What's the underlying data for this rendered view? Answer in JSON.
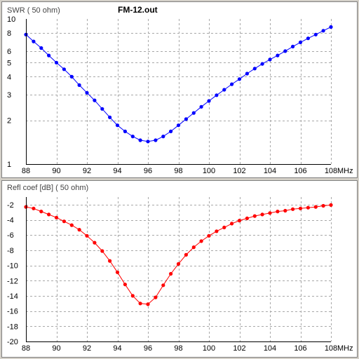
{
  "file_title": "FM-12.out",
  "chart_data": [
    {
      "type": "line",
      "title": "SWR ( 50 ohm)",
      "xlabel": "",
      "x_unit": "MHz",
      "ylabel": "",
      "xlim": [
        88,
        108
      ],
      "ylim": [
        1,
        10
      ],
      "yscale": "log",
      "grid": true,
      "x_ticks": [
        88,
        90,
        92,
        94,
        96,
        98,
        100,
        102,
        104,
        106,
        108
      ],
      "y_ticks": [
        1,
        2,
        3,
        4,
        5,
        6,
        8,
        10
      ],
      "series": [
        {
          "color": "#0000ff",
          "marker": "circle",
          "x": [
            88,
            88.5,
            89,
            89.5,
            90,
            90.5,
            91,
            91.5,
            92,
            92.5,
            93,
            93.5,
            94,
            94.5,
            95,
            95.5,
            96,
            96.5,
            97,
            97.5,
            98,
            98.5,
            99,
            99.5,
            100,
            100.5,
            101,
            101.5,
            102,
            102.5,
            103,
            103.5,
            104,
            104.5,
            105,
            105.5,
            106,
            106.5,
            107,
            107.5,
            108
          ],
          "y": [
            7.8,
            7.0,
            6.3,
            5.6,
            5.0,
            4.5,
            4.0,
            3.5,
            3.1,
            2.75,
            2.4,
            2.1,
            1.85,
            1.68,
            1.55,
            1.46,
            1.43,
            1.46,
            1.55,
            1.68,
            1.85,
            2.04,
            2.25,
            2.48,
            2.72,
            2.98,
            3.25,
            3.55,
            3.85,
            4.2,
            4.55,
            4.9,
            5.25,
            5.6,
            6.0,
            6.45,
            6.9,
            7.35,
            7.8,
            8.3,
            8.8
          ]
        }
      ]
    },
    {
      "type": "line",
      "title": "Refl coef [dB] ( 50 ohm)",
      "xlabel": "",
      "x_unit": "MHz",
      "ylabel": "",
      "xlim": [
        88,
        108
      ],
      "ylim": [
        -20,
        -1
      ],
      "yscale": "linear",
      "grid": true,
      "x_ticks": [
        88,
        90,
        92,
        94,
        96,
        98,
        100,
        102,
        104,
        106,
        108
      ],
      "y_ticks": [
        -2,
        -4,
        -6,
        -8,
        -10,
        -12,
        -14,
        -16,
        -18,
        -20
      ],
      "series": [
        {
          "color": "#ff0000",
          "marker": "circle",
          "x": [
            88,
            88.5,
            89,
            89.5,
            90,
            90.5,
            91,
            91.5,
            92,
            92.5,
            93,
            93.5,
            94,
            94.5,
            95,
            95.5,
            96,
            96.5,
            97,
            97.5,
            98,
            98.5,
            99,
            99.5,
            100,
            100.5,
            101,
            101.5,
            102,
            102.5,
            103,
            103.5,
            104,
            104.5,
            105,
            105.5,
            106,
            106.5,
            107,
            107.5,
            108
          ],
          "y": [
            -2.3,
            -2.5,
            -2.9,
            -3.3,
            -3.7,
            -4.2,
            -4.7,
            -5.3,
            -6.1,
            -7.0,
            -8.1,
            -9.4,
            -10.9,
            -12.5,
            -14.0,
            -15.0,
            -15.1,
            -14.2,
            -12.6,
            -11.1,
            -9.8,
            -8.6,
            -7.6,
            -6.8,
            -6.1,
            -5.5,
            -5.0,
            -4.5,
            -4.1,
            -3.8,
            -3.5,
            -3.3,
            -3.1,
            -2.9,
            -2.8,
            -2.6,
            -2.5,
            -2.4,
            -2.3,
            -2.15,
            -2.05
          ]
        }
      ]
    }
  ]
}
